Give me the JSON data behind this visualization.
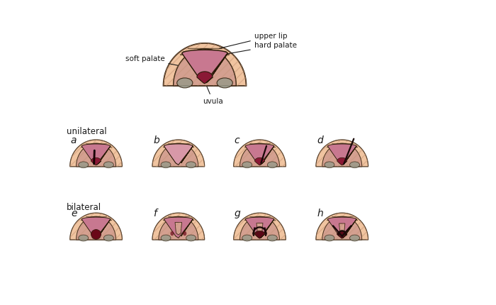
{
  "bg": "#ffffff",
  "skin": "#f0c4a0",
  "skin_dark": "#e8b088",
  "hard_palate": "#d4a090",
  "soft_palate": "#c87890",
  "soft_palate_light": "#d898a8",
  "dark_center": "#8a1835",
  "gray_teeth": "#9a9a8a",
  "outline": "#2a1a08",
  "hatch_color": "#c89878",
  "cleft_line": "#1a0808",
  "label_color": "#1a1a1a",
  "label_upper_lip": "upper lip",
  "label_hard_palate": "hard palate",
  "label_soft_palate": "soft palate",
  "label_uvula": "uvula",
  "label_unilateral": "unilateral",
  "label_bilateral": "bilateral",
  "sub_labels": [
    "a",
    "b",
    "c",
    "d",
    "e",
    "f",
    "g",
    "h"
  ]
}
